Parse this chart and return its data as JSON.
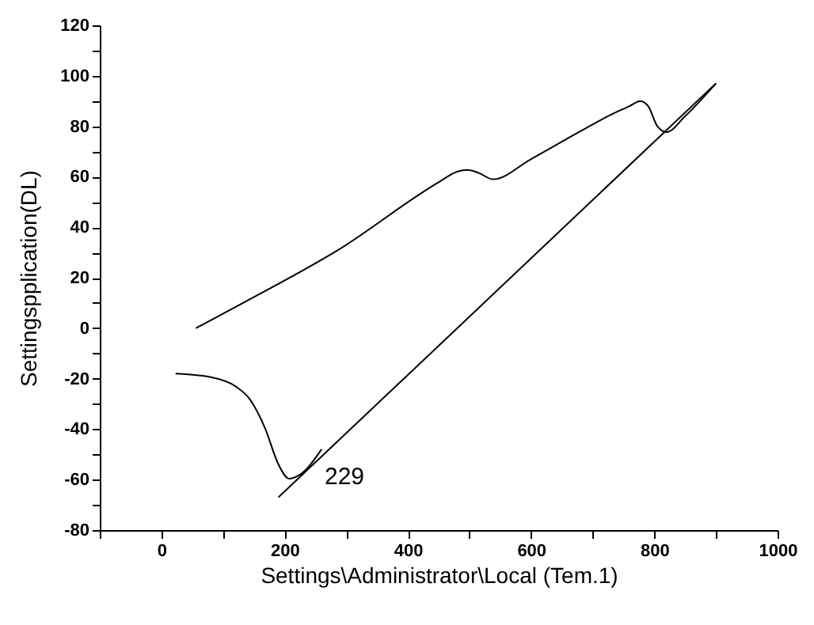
{
  "chart_data": {
    "type": "line",
    "xlabel": "Settings\\Administrator\\Local (Tem.1)",
    "ylabel": "Settingspplication(DL)",
    "xlim": [
      -100,
      1000
    ],
    "ylim": [
      -80,
      120
    ],
    "xticks": [
      {
        "value": -100,
        "label": null
      },
      0,
      {
        "value": 100,
        "label": null
      },
      200,
      {
        "value": 300,
        "label": null
      },
      400,
      {
        "value": 500,
        "label": null
      },
      600,
      {
        "value": 700,
        "label": null
      },
      800,
      {
        "value": 900,
        "label": null
      },
      1000
    ],
    "yticks": [
      -80,
      {
        "value": -70,
        "label": null
      },
      -60,
      {
        "value": -50,
        "label": null
      },
      -40,
      {
        "value": -30,
        "label": null
      },
      -20,
      {
        "value": -10,
        "label": null
      },
      0,
      {
        "value": 10,
        "label": null
      },
      20,
      {
        "value": 30,
        "label": null
      },
      40,
      {
        "value": 50,
        "label": null
      },
      60,
      {
        "value": 70,
        "label": null
      },
      80,
      {
        "value": 90,
        "label": null
      },
      100,
      {
        "value": 110,
        "label": null
      },
      120
    ],
    "grid": false,
    "marker": "none",
    "line_style": "solid",
    "series": [
      {
        "color": "#000000",
        "x": [
          56,
          138,
          287,
          451,
          480,
          497,
          515,
          538,
          600,
          680,
          733,
          760,
          777,
          790,
          805,
          820,
          850,
          900
        ],
        "values": [
          0,
          10.7,
          31,
          58,
          62,
          62.7,
          61.5,
          59,
          67,
          78,
          85,
          88,
          90,
          88,
          80,
          77.7,
          84,
          97
        ]
      },
      {
        "color": "#000000",
        "x": [
          23,
          82,
          120,
          143,
          168,
          190,
          207,
          225,
          260
        ],
        "values": [
          -18,
          -19.5,
          -23,
          -28,
          -39.5,
          -54,
          -59.6,
          -58,
          -48
        ]
      },
      {
        "color": "#000000",
        "x": [
          190,
          900
        ],
        "values": [
          -67,
          97
        ]
      }
    ],
    "annotations": [
      "229"
    ]
  }
}
